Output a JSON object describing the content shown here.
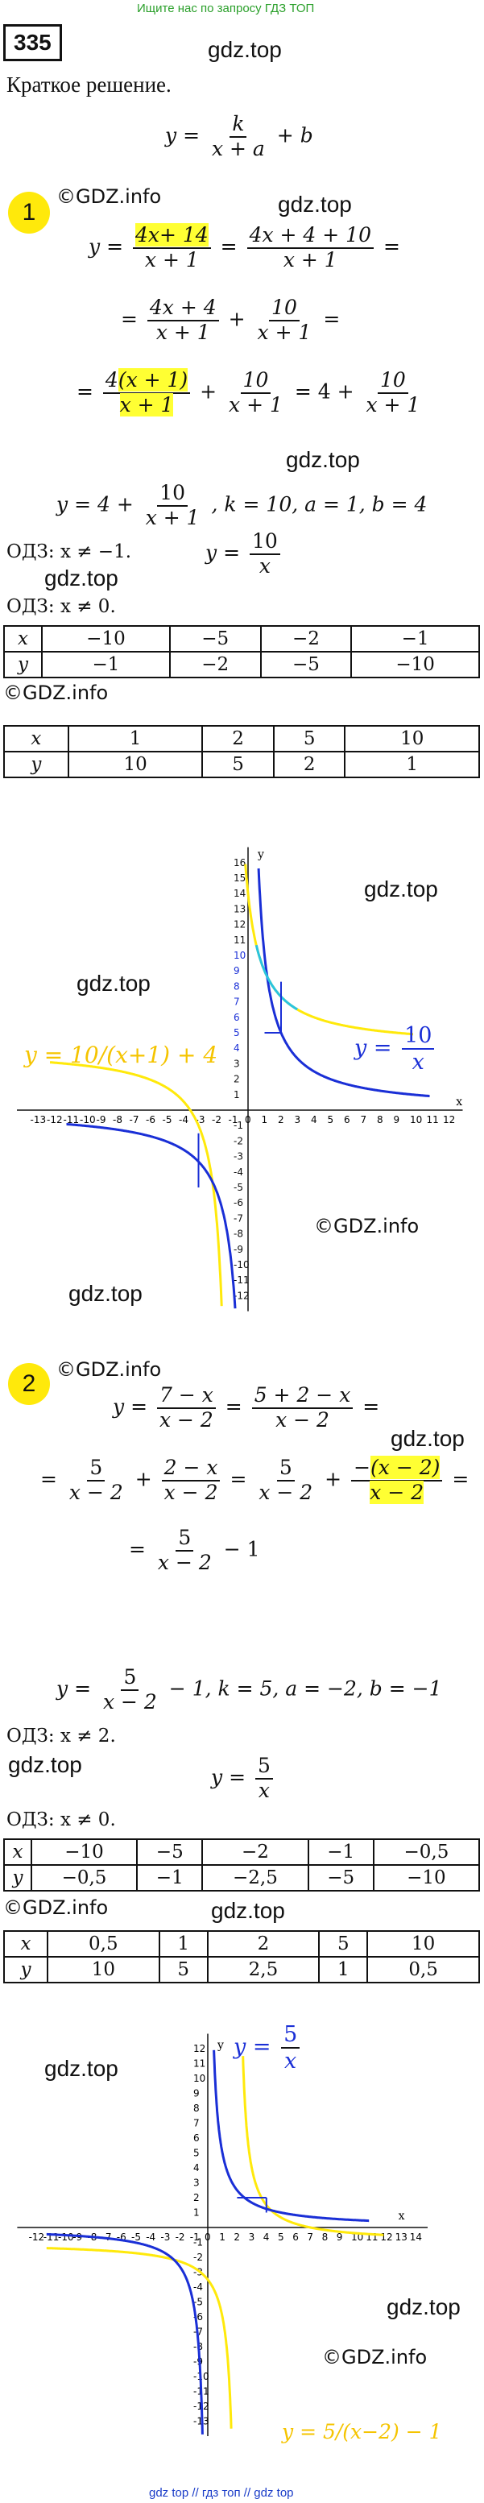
{
  "header": {
    "notice": "Ищите нас по запросу ГДЗ ТОП",
    "problem_number": "335"
  },
  "watermarks": {
    "gdz_top": "gdz.top",
    "gdz_info": "©GDZ.info"
  },
  "intro": {
    "short_solution": "Краткое решение.",
    "formula_y": "y =",
    "formula_num": "k",
    "formula_den": "x + a",
    "formula_tail": "+ b"
  },
  "part1": {
    "number": "1",
    "l1_lhs": "y =",
    "l1_num_a": "4x",
    "l1_num_b": "+ 14",
    "l1_den": "x + 1",
    "l1_eq": "=",
    "l1_num2": "4x + 4 + 10",
    "l1_den2": "x + 1",
    "l1_end": "=",
    "l2_eq": "=",
    "l2_num": "4x + 4",
    "l2_den": "x + 1",
    "l2_plus": "+",
    "l2_num2": "10",
    "l2_den2": "x + 1",
    "l2_end": "=",
    "l3_eq": "=",
    "l3_num_a": "4",
    "l3_num_b": "(x + 1)",
    "l3_den": "x + 1",
    "l3_plus": "+",
    "l3_num2": "10",
    "l3_den2": "x + 1",
    "l3_mid": "= 4 +",
    "l3_num3": "10",
    "l3_den3": "x + 1",
    "result_lhs": "y = 4 +",
    "result_num": "10",
    "result_den": "x + 1",
    "result_tail": ", k = 10, a = 1, b = 4",
    "odz1": "ОДЗ: x ≠ −1.",
    "hyper_lhs": "y =",
    "hyper_num": "10",
    "hyper_den": "x",
    "odz2": "ОДЗ: x ≠ 0.",
    "table1": {
      "x": [
        "x",
        "−10",
        "−5",
        "−2",
        "−1"
      ],
      "y": [
        "y",
        "−1",
        "−2",
        "−5",
        "−10"
      ]
    },
    "table2": {
      "x": [
        "x",
        "1",
        "2",
        "5",
        "10"
      ],
      "y": [
        "y",
        "10",
        "5",
        "2",
        "1"
      ]
    },
    "graph_label_yellow": "y = 10/(x+1) + 4",
    "graph_label_blue_num": "10",
    "graph_label_blue_den": "x",
    "graph_label_blue_lhs": "y ="
  },
  "part2": {
    "number": "2",
    "l1_lhs": "y =",
    "l1_num": "7 − x",
    "l1_den": "x − 2",
    "l1_eq": "=",
    "l1_num2": "5 + 2 − x",
    "l1_den2": "x − 2",
    "l1_end": "=",
    "l2_eq": "=",
    "l2_num": "5",
    "l2_den": "x − 2",
    "l2_plus": "+",
    "l2_num2": "2 − x",
    "l2_den2": "x − 2",
    "l2_eq2": "=",
    "l2_num3": "5",
    "l2_den3": "x − 2",
    "l2_plus2": "+",
    "l2_num4_a": "−",
    "l2_num4_b": "(x − 2)",
    "l2_den4": "x − 2",
    "l2_end": "=",
    "l3_eq": "=",
    "l3_num": "5",
    "l3_den": "x − 2",
    "l3_tail": "− 1",
    "result_lhs": "y =",
    "result_num": "5",
    "result_den": "x − 2",
    "result_tail": "− 1, k = 5, a = −2, b = −1",
    "odz1": "ОДЗ: x ≠ 2.",
    "hyper_lhs": "y =",
    "hyper_num": "5",
    "hyper_den": "x",
    "odz2": "ОДЗ: x ≠ 0.",
    "table1": {
      "x": [
        "x",
        "−10",
        "−5",
        "−2",
        "−1",
        "−0,5"
      ],
      "y": [
        "y",
        "−0,5",
        "−1",
        "−2,5",
        "−5",
        "−10"
      ]
    },
    "table2": {
      "x": [
        "x",
        "0,5",
        "1",
        "2",
        "5",
        "10"
      ],
      "y": [
        "y",
        "10",
        "5",
        "2,5",
        "1",
        "0,5"
      ]
    },
    "graph_label_blue_lhs": "y =",
    "graph_label_blue_num": "5",
    "graph_label_blue_den": "x",
    "graph_label_yellow": "y = 5/(x−2) − 1"
  },
  "graph1": {
    "x_ticks": [
      "-13",
      "-12",
      "-11",
      "-10",
      "-9",
      "-8",
      "-7",
      "-6",
      "-5",
      "-4",
      "-3",
      "-2",
      "-1",
      "0",
      "1",
      "2",
      "3",
      "4",
      "5",
      "6",
      "7",
      "8",
      "9",
      "10",
      "11",
      "12"
    ],
    "y_ticks": [
      "16",
      "15",
      "14",
      "13",
      "12",
      "11",
      "10",
      "9",
      "8",
      "7",
      "6",
      "5",
      "4",
      "3",
      "2",
      "1",
      "-1",
      "-2",
      "-3",
      "-4",
      "-5",
      "-6",
      "-7",
      "-8",
      "-9",
      "-10",
      "-11",
      "-12"
    ],
    "x_axis": "x",
    "y_axis": "y"
  },
  "graph2": {
    "x_ticks": [
      "-12",
      "-11",
      "-10",
      "-9",
      "-8",
      "-7",
      "-6",
      "-5",
      "-4",
      "-3",
      "-2",
      "-1",
      "0",
      "1",
      "2",
      "3",
      "4",
      "5",
      "6",
      "7",
      "8",
      "9",
      "10",
      "11",
      "12",
      "13",
      "14"
    ],
    "y_ticks": [
      "12",
      "11",
      "10",
      "9",
      "8",
      "7",
      "6",
      "5",
      "4",
      "3",
      "2",
      "1",
      "-1",
      "-2",
      "-3",
      "-4",
      "-5",
      "-6",
      "-7",
      "-8",
      "-9",
      "-10",
      "-11",
      "-12",
      "-13"
    ],
    "x_axis": "x",
    "y_axis": "y"
  },
  "footer": "gdz top // гдз топ // gdz top",
  "colors": {
    "yellow": "#ffe90b",
    "blue": "#1a2fd6",
    "cyan": "#29c4e0",
    "highlight": "#ffff33"
  }
}
